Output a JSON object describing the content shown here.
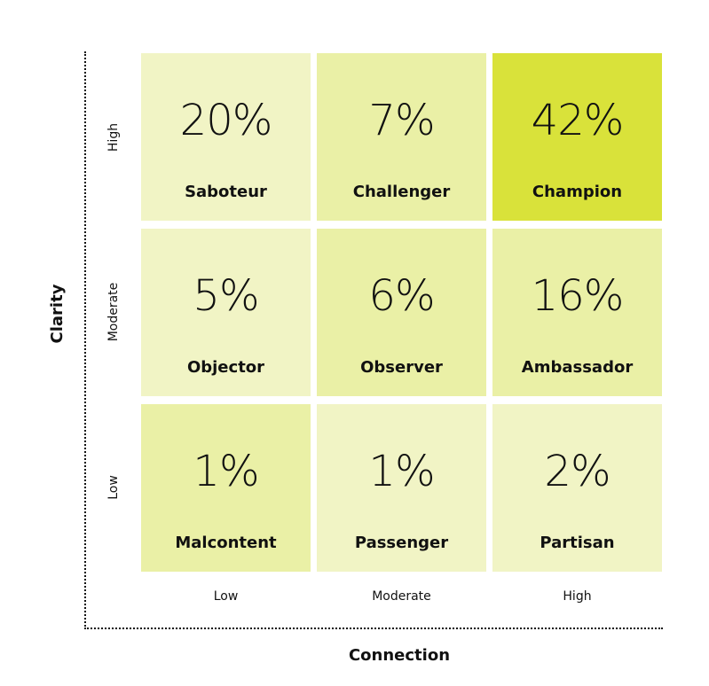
{
  "chart_data": {
    "type": "heatmap",
    "xlabel": "Connection",
    "ylabel": "Clarity",
    "x_categories": [
      "Low",
      "Moderate",
      "High"
    ],
    "y_categories": [
      "High",
      "Moderate",
      "Low"
    ],
    "cells": [
      [
        {
          "value": "20%",
          "label": "Saboteur",
          "color": "#f1f4c5"
        },
        {
          "value": "7%",
          "label": "Challenger",
          "color": "#eaf0a6"
        },
        {
          "value": "42%",
          "label": "Champion",
          "color": "#d9e23a"
        }
      ],
      [
        {
          "value": "5%",
          "label": "Objector",
          "color": "#f1f4c5"
        },
        {
          "value": "6%",
          "label": "Observer",
          "color": "#eaf0a6"
        },
        {
          "value": "16%",
          "label": "Ambassador",
          "color": "#eaf0a6"
        }
      ],
      [
        {
          "value": "1%",
          "label": "Malcontent",
          "color": "#eaf0a6"
        },
        {
          "value": "1%",
          "label": "Passenger",
          "color": "#f1f4c5"
        },
        {
          "value": "2%",
          "label": "Partisan",
          "color": "#f1f4c5"
        }
      ]
    ]
  }
}
